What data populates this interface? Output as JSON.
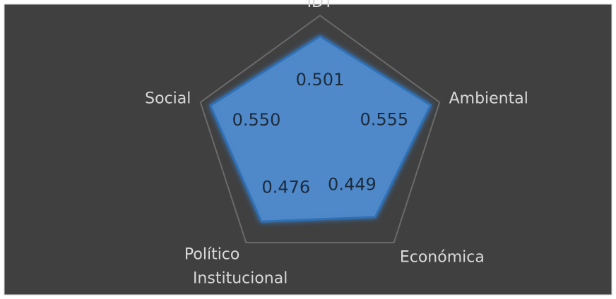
{
  "chart_data": {
    "type": "radar",
    "categories": [
      "IDT",
      "Ambiental",
      "Económica",
      [
        "Político",
        "Institucional"
      ],
      "Social"
    ],
    "values": [
      0.501,
      0.555,
      0.449,
      0.476,
      0.55
    ],
    "value_labels": [
      "0.501",
      "0.555",
      "0.449",
      "0.476",
      "0.550"
    ],
    "color": "#4f89c9",
    "rlim": [
      0,
      0.6
    ],
    "rticks": [
      0.2,
      0.4,
      0.6
    ],
    "grid": true
  }
}
